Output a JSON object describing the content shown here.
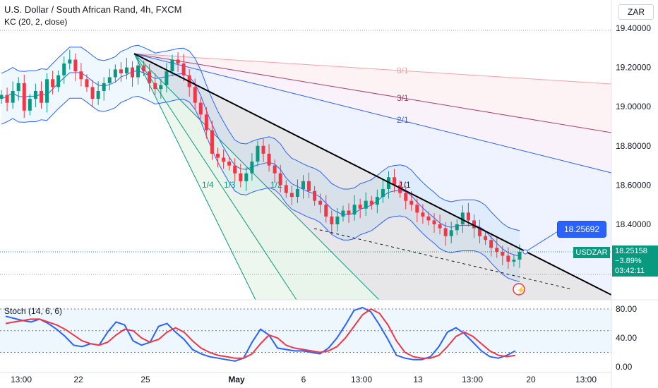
{
  "header": {
    "title": "U.S. Dollar / South African Rand, 4h, FXCM",
    "indicator": "KC (20, 2, close)",
    "oscillator": "Stoch (14, 6, 6)",
    "currency": "ZAR"
  },
  "price_tags": {
    "flag_value": "18.25692",
    "symbol": "USDZAR",
    "last_price": "18.25158",
    "change": "−3.89%",
    "countdown": "03:42:11"
  },
  "fan_labels": [
    "8/1",
    "3/1",
    "2/1",
    "1/1",
    "1/2",
    "1/3",
    "1/4"
  ],
  "colors": {
    "up": "#089981",
    "down": "#f23645",
    "keltner": "#2962ff",
    "stoch_k": "#2962ff",
    "stoch_d": "#f23645",
    "trendline": "#000000"
  },
  "chart_data": [
    {
      "type": "candlestick",
      "title": "U.S. Dollar / South African Rand, 4h, FXCM",
      "y_ticks": [
        "19.40000",
        "19.20000",
        "19.00000",
        "18.80000",
        "18.60000",
        "18.40000"
      ],
      "ylim": [
        18.12,
        19.54
      ],
      "x_ticks": [
        "13:00",
        "22",
        "25",
        "May",
        "6",
        "13:00",
        "13",
        "13:00",
        "20",
        "13:00"
      ],
      "series": [
        {
          "name": "USDZAR",
          "close": [
            19.06,
            19.02,
            19.08,
            19.12,
            18.98,
            19.04,
            19.08,
            19.02,
            19.14,
            19.1,
            19.16,
            19.22,
            19.24,
            19.18,
            19.14,
            19.1,
            19.04,
            19.08,
            19.12,
            19.15,
            19.19,
            19.17,
            19.2,
            19.15,
            19.21,
            19.18,
            19.12,
            19.09,
            19.11,
            19.18,
            19.24,
            19.22,
            19.16,
            19.1,
            19.02,
            18.96,
            18.88,
            18.76,
            18.74,
            18.72,
            18.7,
            18.66,
            18.62,
            18.66,
            18.72,
            18.8,
            18.76,
            18.7,
            18.66,
            18.6,
            18.56,
            18.54,
            18.58,
            18.62,
            18.57,
            18.52,
            18.5,
            18.44,
            18.4,
            18.44,
            18.47,
            18.45,
            18.5,
            18.48,
            18.52,
            18.5,
            18.54,
            18.58,
            18.64,
            18.6,
            18.56,
            18.52,
            18.5,
            18.46,
            18.44,
            18.42,
            18.4,
            18.38,
            18.34,
            18.37,
            18.4,
            18.46,
            18.42,
            18.38,
            18.34,
            18.32,
            18.28,
            18.26,
            18.24,
            18.21,
            18.22,
            18.26
          ]
        }
      ],
      "last_value": 18.25158
    },
    {
      "type": "line",
      "title": "Stoch (14, 6, 6)",
      "y_ticks": [
        "80.00",
        "40.00",
        "0.00"
      ],
      "ylim": [
        0,
        100
      ],
      "reference_lines": [
        80,
        50,
        20
      ],
      "series": [
        {
          "name": "%K",
          "values": [
            70,
            67,
            64,
            62,
            66,
            60,
            52,
            42,
            30,
            28,
            32,
            30,
            48,
            62,
            58,
            36,
            30,
            34,
            56,
            60,
            48,
            38,
            24,
            18,
            14,
            12,
            10,
            8,
            12,
            34,
            52,
            44,
            26,
            24,
            22,
            22,
            20,
            18,
            26,
            40,
            58,
            78,
            82,
            76,
            58,
            38,
            16,
            12,
            10,
            10,
            14,
            28,
            48,
            54,
            46,
            34,
            22,
            14,
            12,
            16,
            22
          ]
        },
        {
          "name": "%D",
          "values": [
            60,
            62,
            64,
            66,
            66,
            62,
            58,
            52,
            44,
            36,
            32,
            30,
            34,
            44,
            52,
            50,
            40,
            34,
            38,
            48,
            54,
            48,
            36,
            26,
            20,
            16,
            14,
            12,
            12,
            18,
            32,
            44,
            40,
            30,
            26,
            24,
            22,
            20,
            22,
            28,
            40,
            56,
            72,
            80,
            74,
            58,
            36,
            20,
            14,
            12,
            12,
            16,
            28,
            42,
            48,
            42,
            32,
            22,
            16,
            14,
            16
          ]
        }
      ]
    }
  ]
}
